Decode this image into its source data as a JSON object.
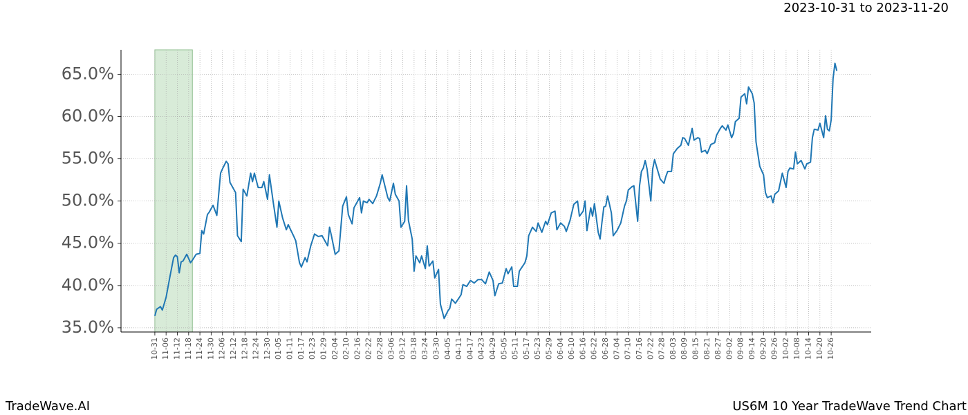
{
  "chart_data": {
    "type": "line",
    "title": "2023-10-31 to 2023-11-20",
    "footer_left": "TradeWave.AI",
    "footer_right": "US6M 10 Year TradeWave Trend Chart",
    "highlight": [
      0,
      20
    ],
    "highlight_color": "#d8ebd8",
    "grid": true,
    "xlim": [
      -18,
      381.3
    ],
    "ylim": [
      34.5,
      67.9
    ],
    "xticks": [
      {
        "value": 0,
        "label": "10-31"
      },
      {
        "value": 6,
        "label": "11-06"
      },
      {
        "value": 12,
        "label": "11-12"
      },
      {
        "value": 18,
        "label": "11-18"
      },
      {
        "value": 24,
        "label": "11-24"
      },
      {
        "value": 30,
        "label": "11-30"
      },
      {
        "value": 36,
        "label": "12-06"
      },
      {
        "value": 42,
        "label": "12-12"
      },
      {
        "value": 48,
        "label": "12-18"
      },
      {
        "value": 54,
        "label": "12-24"
      },
      {
        "value": 60,
        "label": "12-30"
      },
      {
        "value": 66,
        "label": "01-05"
      },
      {
        "value": 72,
        "label": "01-11"
      },
      {
        "value": 78,
        "label": "01-17"
      },
      {
        "value": 84,
        "label": "01-23"
      },
      {
        "value": 90,
        "label": "01-29"
      },
      {
        "value": 96,
        "label": "02-04"
      },
      {
        "value": 102,
        "label": "02-10"
      },
      {
        "value": 108,
        "label": "02-16"
      },
      {
        "value": 114,
        "label": "02-22"
      },
      {
        "value": 120,
        "label": "02-28"
      },
      {
        "value": 126,
        "label": "03-06"
      },
      {
        "value": 132,
        "label": "03-12"
      },
      {
        "value": 138,
        "label": "03-18"
      },
      {
        "value": 144,
        "label": "03-24"
      },
      {
        "value": 150,
        "label": "03-30"
      },
      {
        "value": 156,
        "label": "04-05"
      },
      {
        "value": 162,
        "label": "04-11"
      },
      {
        "value": 168,
        "label": "04-17"
      },
      {
        "value": 174,
        "label": "04-23"
      },
      {
        "value": 180,
        "label": "04-29"
      },
      {
        "value": 186,
        "label": "05-05"
      },
      {
        "value": 192,
        "label": "05-11"
      },
      {
        "value": 198,
        "label": "05-17"
      },
      {
        "value": 204,
        "label": "05-23"
      },
      {
        "value": 210,
        "label": "05-29"
      },
      {
        "value": 216,
        "label": "06-04"
      },
      {
        "value": 222,
        "label": "06-10"
      },
      {
        "value": 228,
        "label": "06-16"
      },
      {
        "value": 234,
        "label": "06-22"
      },
      {
        "value": 240,
        "label": "06-28"
      },
      {
        "value": 246,
        "label": "07-04"
      },
      {
        "value": 252,
        "label": "07-10"
      },
      {
        "value": 258,
        "label": "07-16"
      },
      {
        "value": 264,
        "label": "07-22"
      },
      {
        "value": 270,
        "label": "07-28"
      },
      {
        "value": 276,
        "label": "08-03"
      },
      {
        "value": 282,
        "label": "08-09"
      },
      {
        "value": 288,
        "label": "08-15"
      },
      {
        "value": 294,
        "label": "08-21"
      },
      {
        "value": 300,
        "label": "08-27"
      },
      {
        "value": 306,
        "label": "09-02"
      },
      {
        "value": 312,
        "label": "09-08"
      },
      {
        "value": 318,
        "label": "09-14"
      },
      {
        "value": 324,
        "label": "09-20"
      },
      {
        "value": 330,
        "label": "09-26"
      },
      {
        "value": 336,
        "label": "10-02"
      },
      {
        "value": 342,
        "label": "10-08"
      },
      {
        "value": 348,
        "label": "10-14"
      },
      {
        "value": 354,
        "label": "10-20"
      },
      {
        "value": 360,
        "label": "10-26"
      }
    ],
    "yticks": [
      {
        "value": 35,
        "label": "35.0%"
      },
      {
        "value": 40,
        "label": "40.0%"
      },
      {
        "value": 45,
        "label": "45.0%"
      },
      {
        "value": 50,
        "label": "50.0%"
      },
      {
        "value": 55,
        "label": "55.0%"
      },
      {
        "value": 60,
        "label": "60.0%"
      },
      {
        "value": 65,
        "label": "65.0%"
      }
    ],
    "color": "#1f77b4",
    "x": [
      0,
      1,
      3,
      4,
      6,
      8,
      10,
      11,
      12,
      13,
      14,
      15,
      17,
      19,
      20,
      22,
      24,
      25,
      26,
      28,
      29,
      31,
      33,
      35,
      36,
      38,
      39,
      40,
      43,
      44,
      46,
      47,
      49,
      51,
      52,
      53,
      55,
      57,
      58,
      60,
      61,
      63,
      65,
      66,
      68,
      70,
      71,
      74,
      75,
      77,
      78,
      80,
      81,
      83,
      85,
      87,
      89,
      92,
      93,
      94,
      96,
      98,
      99,
      100,
      102,
      103,
      105,
      106,
      109,
      110,
      111,
      113,
      114,
      116,
      118,
      120,
      121,
      123,
      124,
      125,
      127,
      128,
      130,
      131,
      133,
      134,
      135,
      137,
      138,
      139,
      141,
      142,
      144,
      145,
      146,
      148,
      149,
      151,
      152,
      154,
      156,
      157,
      158,
      160,
      163,
      164,
      166,
      168,
      170,
      172,
      174,
      176,
      178,
      180,
      181,
      183,
      185,
      187,
      188,
      190,
      191,
      193,
      194,
      197,
      198,
      199,
      201,
      203,
      204,
      206,
      208,
      209,
      211,
      213,
      214,
      216,
      218,
      219,
      221,
      223,
      225,
      226,
      228,
      229,
      230,
      232,
      233,
      234,
      236,
      237,
      238,
      239,
      240,
      241,
      243,
      244,
      246,
      248,
      250,
      251,
      252,
      254,
      255,
      257,
      258,
      259,
      260,
      261,
      262,
      264,
      265,
      266,
      267,
      269,
      271,
      272,
      273,
      275,
      276,
      278,
      280,
      281,
      282,
      284,
      286,
      287,
      289,
      290,
      291,
      293,
      294,
      296,
      298,
      299,
      301,
      302,
      304,
      305,
      307,
      308,
      309,
      311,
      312,
      314,
      315,
      316,
      318,
      319,
      320,
      322,
      324,
      325,
      326,
      328,
      329,
      330,
      332,
      334,
      336,
      337,
      338,
      340,
      341,
      342,
      344,
      346,
      347,
      349,
      350,
      351,
      353,
      354,
      356,
      357,
      358,
      359,
      360,
      361,
      362,
      363
    ],
    "values": [
      36.4,
      37.2,
      37.5,
      37.1,
      38.6,
      41.0,
      43.3,
      43.6,
      43.4,
      41.5,
      42.8,
      42.9,
      43.7,
      42.7,
      43.0,
      43.7,
      43.8,
      46.5,
      46.1,
      48.4,
      48.7,
      49.5,
      48.3,
      53.3,
      53.8,
      54.7,
      54.4,
      52.2,
      51.0,
      45.9,
      45.2,
      51.4,
      50.6,
      53.3,
      52.3,
      53.3,
      51.6,
      51.6,
      52.3,
      50.2,
      53.1,
      49.9,
      46.9,
      50.0,
      48.0,
      46.6,
      47.2,
      45.8,
      45.3,
      42.7,
      42.2,
      43.3,
      42.8,
      44.7,
      46.1,
      45.8,
      45.9,
      44.7,
      46.9,
      45.9,
      43.7,
      44.1,
      46.8,
      49.4,
      50.5,
      48.4,
      47.3,
      49.2,
      50.4,
      48.6,
      50.0,
      49.8,
      50.2,
      49.7,
      50.6,
      52.1,
      53.1,
      51.3,
      50.4,
      50.0,
      52.1,
      50.8,
      50.0,
      46.9,
      47.6,
      51.8,
      47.7,
      45.5,
      41.7,
      43.5,
      42.7,
      43.5,
      42.0,
      44.7,
      42.3,
      42.9,
      40.9,
      41.9,
      37.8,
      36.1,
      37.0,
      37.3,
      38.4,
      37.9,
      38.9,
      40.1,
      39.9,
      40.6,
      40.3,
      40.7,
      40.7,
      40.2,
      41.6,
      40.6,
      38.8,
      40.2,
      40.3,
      42.0,
      41.4,
      42.2,
      39.9,
      39.9,
      41.7,
      42.7,
      43.5,
      45.9,
      46.9,
      46.4,
      47.4,
      46.3,
      47.6,
      47.2,
      48.6,
      48.8,
      46.6,
      47.4,
      47.0,
      46.4,
      47.7,
      49.6,
      50.0,
      48.2,
      48.8,
      50.0,
      46.5,
      49.2,
      48.2,
      49.7,
      46.3,
      45.5,
      47.5,
      49.3,
      49.4,
      50.6,
      48.6,
      45.9,
      46.5,
      47.4,
      49.4,
      50.0,
      51.3,
      51.7,
      51.8,
      47.6,
      51.8,
      53.5,
      53.9,
      54.8,
      53.8,
      50.0,
      53.8,
      54.9,
      54.1,
      52.6,
      52.1,
      52.9,
      53.5,
      53.5,
      55.6,
      56.2,
      56.6,
      57.5,
      57.4,
      56.6,
      58.6,
      57.2,
      57.5,
      57.4,
      55.8,
      56.0,
      55.6,
      56.7,
      56.9,
      57.8,
      58.6,
      58.9,
      58.4,
      59.0,
      57.5,
      58.0,
      59.4,
      59.8,
      62.3,
      62.7,
      61.5,
      63.5,
      62.7,
      61.6,
      57.0,
      54.1,
      53.1,
      51.0,
      50.4,
      50.6,
      49.8,
      50.8,
      51.2,
      53.3,
      51.6,
      53.5,
      53.9,
      53.8,
      55.8,
      54.4,
      54.8,
      53.8,
      54.4,
      54.6,
      57.5,
      58.5,
      58.4,
      59.2,
      57.5,
      60.1,
      58.5,
      58.3,
      59.6,
      64.5,
      66.3,
      65.4
    ]
  }
}
